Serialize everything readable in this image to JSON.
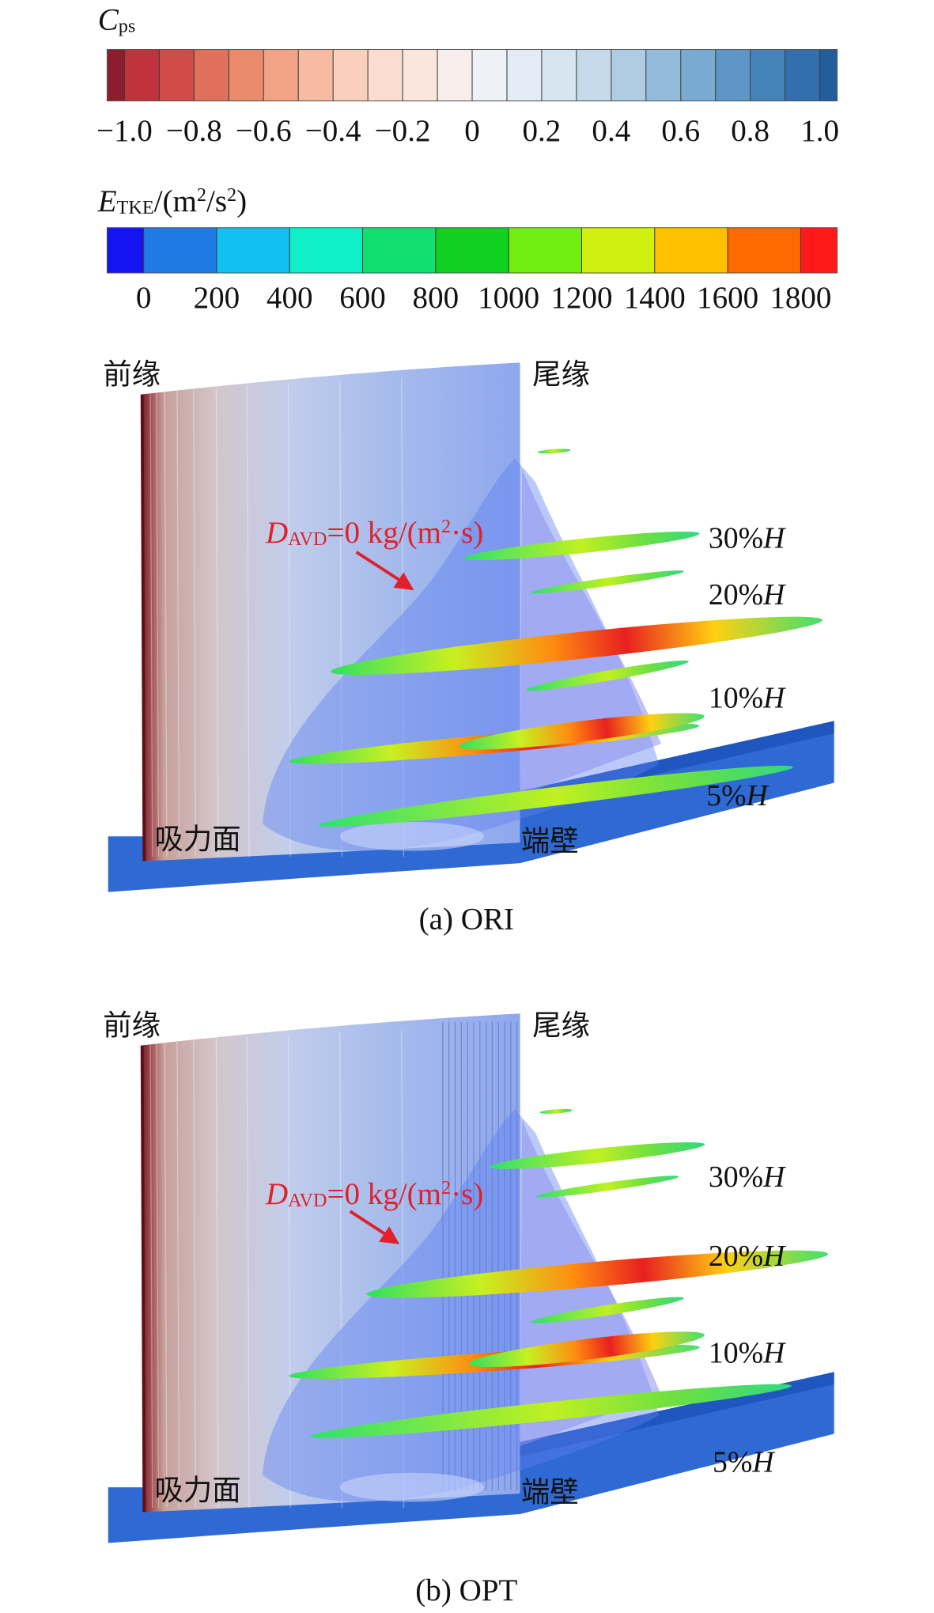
{
  "colorbars": [
    {
      "title": [
        {
          "text": "C",
          "style": "italic"
        },
        {
          "text": "ps",
          "style": "sub"
        }
      ],
      "colors": [
        "#8c1d2c",
        "#c0333c",
        "#d14c48",
        "#e0705a",
        "#ea8b6e",
        "#f2a385",
        "#f7bba1",
        "#fad0bc",
        "#fcdccf",
        "#fbe6de",
        "#f8efec",
        "#eef2f7",
        "#e3ecf4",
        "#d6e5f0",
        "#c5dbeb",
        "#aecde4",
        "#93bcdb",
        "#78aad2",
        "#5e97c7",
        "#4683bb",
        "#336fac",
        "#255c9c"
      ],
      "ticks": [
        "−1.0",
        "−0.8",
        "−0.6",
        "−0.4",
        "−0.2",
        "0",
        "0.2",
        "0.4",
        "0.6",
        "0.8",
        "1.0"
      ]
    },
    {
      "title": [
        {
          "text": "E",
          "style": "italic"
        },
        {
          "text": "TKE",
          "style": "sub"
        },
        {
          "text": "/(m",
          "style": "normal"
        },
        {
          "text": "2",
          "style": "sup"
        },
        {
          "text": "/s",
          "style": "normal"
        },
        {
          "text": "2",
          "style": "sup"
        },
        {
          "text": ")",
          "style": "normal"
        }
      ],
      "colors": [
        "#1414f0",
        "#1f7ae6",
        "#12c0f2",
        "#10f0c8",
        "#10e070",
        "#10d020",
        "#70f010",
        "#cff010",
        "#ffc000",
        "#ff6a00",
        "#ff1a1a"
      ],
      "ticks": [
        "0",
        "200",
        "400",
        "600",
        "800",
        "1000",
        "1200",
        "1400",
        "1600",
        "1800"
      ]
    }
  ],
  "panels": [
    {
      "caption": "(a) ORI",
      "leading_edge": "前缘",
      "trailing_edge": "尾缘",
      "suction_surface": "吸力面",
      "endwall": "端壁",
      "annotation": [
        {
          "text": "D",
          "style": "italic"
        },
        {
          "text": "AVD",
          "style": "sub"
        },
        {
          "text": "=0 kg/(m",
          "style": "normal"
        },
        {
          "text": "2",
          "style": "sup"
        },
        {
          "text": "·s)",
          "style": "normal"
        }
      ],
      "spans": [
        [
          {
            "text": "30%",
            "style": "normal"
          },
          {
            "text": "H",
            "style": "italic"
          }
        ],
        [
          {
            "text": "20%",
            "style": "normal"
          },
          {
            "text": "H",
            "style": "italic"
          }
        ],
        [
          {
            "text": "10%",
            "style": "normal"
          },
          {
            "text": "H",
            "style": "italic"
          }
        ],
        [
          {
            "text": "5%",
            "style": "normal"
          },
          {
            "text": "H",
            "style": "italic"
          }
        ]
      ]
    },
    {
      "caption": "(b) OPT",
      "leading_edge": "前缘",
      "trailing_edge": "尾缘",
      "suction_surface": "吸力面",
      "endwall": "端壁",
      "annotation": [
        {
          "text": "D",
          "style": "italic"
        },
        {
          "text": "AVD",
          "style": "sub"
        },
        {
          "text": "=0 kg/(m",
          "style": "normal"
        },
        {
          "text": "2",
          "style": "sup"
        },
        {
          "text": "·s)",
          "style": "normal"
        }
      ],
      "spans": [
        [
          {
            "text": "30%",
            "style": "normal"
          },
          {
            "text": "H",
            "style": "italic"
          }
        ],
        [
          {
            "text": "20%",
            "style": "normal"
          },
          {
            "text": "H",
            "style": "italic"
          }
        ],
        [
          {
            "text": "10%",
            "style": "normal"
          },
          {
            "text": "H",
            "style": "italic"
          }
        ],
        [
          {
            "text": "5%",
            "style": "normal"
          },
          {
            "text": "H",
            "style": "italic"
          }
        ]
      ]
    }
  ]
}
